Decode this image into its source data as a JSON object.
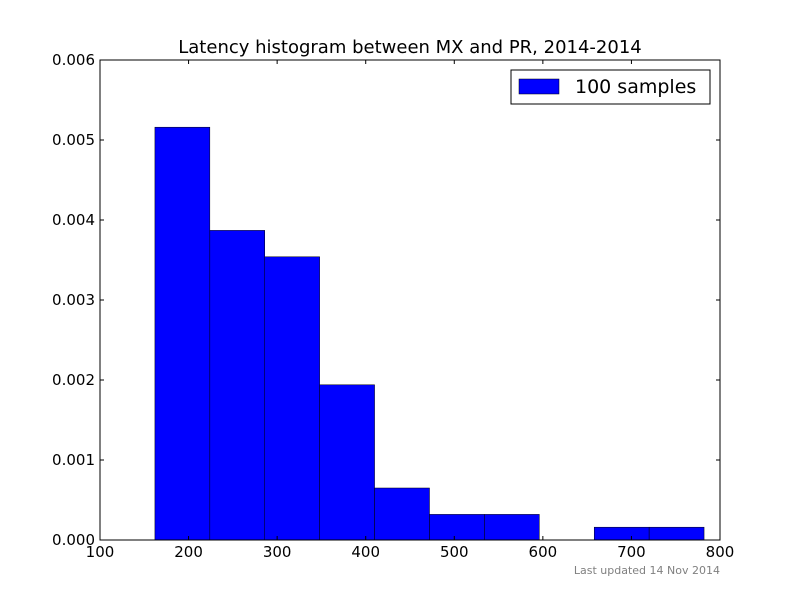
{
  "chart_data": {
    "type": "bar",
    "title": "Latency histogram between MX and PR, 2014-2014",
    "xlabel": "",
    "ylabel": "",
    "xlim": [
      100,
      800
    ],
    "ylim": [
      0,
      0.006
    ],
    "x_ticks": [
      100,
      200,
      300,
      400,
      500,
      600,
      700,
      800
    ],
    "y_ticks": [
      0.0,
      0.001,
      0.002,
      0.003,
      0.004,
      0.005,
      0.006
    ],
    "x_tick_labels": [
      "100",
      "200",
      "300",
      "400",
      "500",
      "600",
      "700",
      "800"
    ],
    "y_tick_labels": [
      "0.000",
      "0.001",
      "0.002",
      "0.003",
      "0.004",
      "0.005",
      "0.006"
    ],
    "grid": false,
    "legend_position": "top-right",
    "series": [
      {
        "name": "100 samples",
        "color": "#0000ff",
        "bins": [
          {
            "x0": 162,
            "x1": 224,
            "value": 0.00516
          },
          {
            "x0": 224,
            "x1": 286,
            "value": 0.00387
          },
          {
            "x0": 286,
            "x1": 348,
            "value": 0.00354
          },
          {
            "x0": 348,
            "x1": 410,
            "value": 0.00194
          },
          {
            "x0": 410,
            "x1": 472,
            "value": 0.00065
          },
          {
            "x0": 472,
            "x1": 534,
            "value": 0.00032
          },
          {
            "x0": 534,
            "x1": 596,
            "value": 0.00032
          },
          {
            "x0": 596,
            "x1": 658,
            "value": 0.0
          },
          {
            "x0": 658,
            "x1": 720,
            "value": 0.00016
          },
          {
            "x0": 720,
            "x1": 782,
            "value": 0.00016
          }
        ]
      }
    ]
  },
  "footnote": "Last updated 14 Nov 2014"
}
